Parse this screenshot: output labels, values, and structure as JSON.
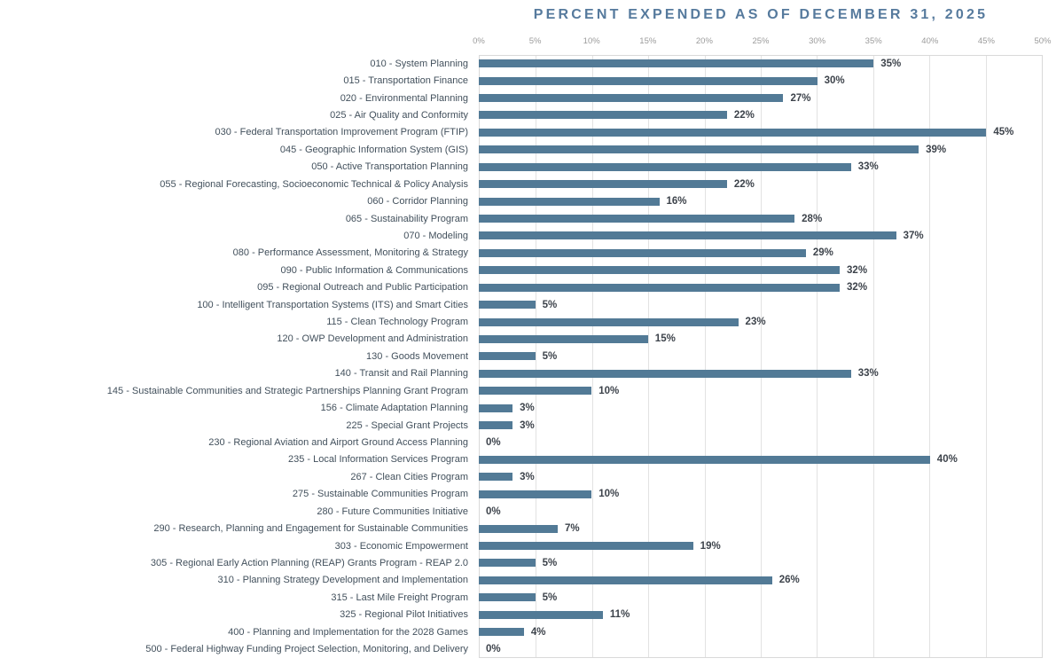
{
  "chart_data": {
    "type": "bar",
    "orientation": "horizontal",
    "title": "PERCENT EXPENDED AS OF DECEMBER 31, 2025",
    "xlabel": "",
    "ylabel": "",
    "xlim": [
      0,
      50
    ],
    "x_tick_labels": [
      "0%",
      "5%",
      "10%",
      "15%",
      "20%",
      "25%",
      "30%",
      "35%",
      "40%",
      "45%",
      "50%"
    ],
    "grid": true,
    "legend": false,
    "categories": [
      "010 - System Planning",
      "015 - Transportation Finance",
      "020 - Environmental Planning",
      "025 - Air Quality and Conformity",
      "030 - Federal Transportation Improvement Program (FTIP)",
      "045 - Geographic Information System (GIS)",
      "050 - Active Transportation Planning",
      "055 - Regional Forecasting, Socioeconomic Technical & Policy Analysis",
      "060 - Corridor Planning",
      "065 - Sustainability Program",
      "070 - Modeling",
      "080 - Performance Assessment, Monitoring & Strategy",
      "090 - Public Information & Communications",
      "095 - Regional Outreach and Public Participation",
      "100 - Intelligent Transportation Systems (ITS) and Smart Cities",
      "115 - Clean Technology Program",
      "120 - OWP Development and Administration",
      "130 - Goods Movement",
      "140 - Transit and Rail Planning",
      "145 - Sustainable Communities and Strategic Partnerships Planning Grant Program",
      "156 - Climate Adaptation Planning",
      "225 - Special Grant Projects",
      "230 - Regional Aviation and Airport Ground Access Planning",
      "235 - Local Information Services Program",
      "267 - Clean Cities Program",
      "275 - Sustainable Communities Program",
      "280 - Future Communities Initiative",
      "290 - Research, Planning and Engagement for Sustainable Communities",
      "303 - Economic Empowerment",
      "305 - Regional Early Action Planning (REAP) Grants Program - REAP 2.0",
      "310 - Planning Strategy Development and Implementation",
      "315 - Last Mile Freight Program",
      "325 - Regional Pilot Initiatives",
      "400 - Planning and Implementation for the 2028 Games",
      "500 - Federal Highway Funding Project Selection, Monitoring, and Delivery"
    ],
    "values": [
      35,
      30,
      27,
      22,
      45,
      39,
      33,
      22,
      16,
      28,
      37,
      29,
      32,
      32,
      5,
      23,
      15,
      5,
      33,
      10,
      3,
      3,
      0,
      40,
      3,
      10,
      0,
      7,
      19,
      5,
      26,
      5,
      11,
      4,
      0
    ],
    "value_labels": [
      "35%",
      "30%",
      "27%",
      "22%",
      "45%",
      "39%",
      "33%",
      "22%",
      "16%",
      "28%",
      "37%",
      "29%",
      "32%",
      "32%",
      "5%",
      "23%",
      "15%",
      "5%",
      "33%",
      "10%",
      "3%",
      "3%",
      "0%",
      "40%",
      "3%",
      "10%",
      "0%",
      "7%",
      "19%",
      "5%",
      "26%",
      "5%",
      "11%",
      "4%",
      "0%"
    ]
  },
  "colors": {
    "bar": "#527a96",
    "title": "#567a9d",
    "category_label": "#42505c",
    "value_label": "#3d434b",
    "tick_label": "#9b9b9b",
    "gridline": "#e2e2e2"
  }
}
